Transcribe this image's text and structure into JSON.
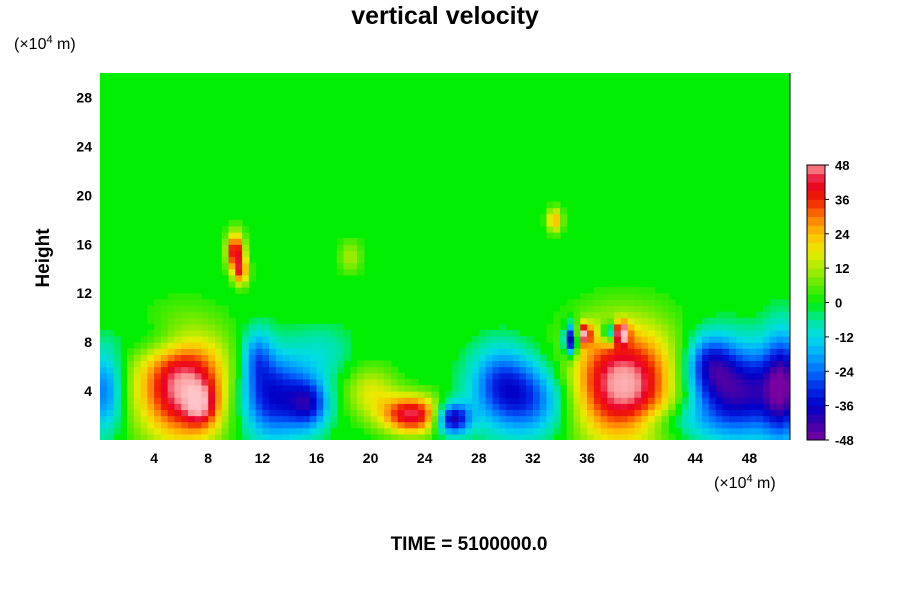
{
  "chart_data": {
    "type": "heatmap",
    "title": "vertical velocity",
    "ylabel": "Height",
    "y_unit": {
      "prefix": "(×10",
      "exponent": "4",
      "suffix": " m)"
    },
    "x_unit": {
      "prefix": "(×10",
      "exponent": "4",
      "suffix": " m)"
    },
    "xlim": [
      0,
      51
    ],
    "ylim": [
      0,
      30
    ],
    "x_ticks": [
      4,
      8,
      12,
      16,
      20,
      24,
      28,
      32,
      36,
      40,
      44,
      48
    ],
    "y_ticks": [
      4,
      8,
      12,
      16,
      20,
      24,
      28
    ],
    "colorbar": {
      "min": -48,
      "max": 48,
      "ticks": [
        48,
        36,
        24,
        12,
        0,
        -12,
        -24,
        -36,
        -48
      ]
    },
    "background_value": 0,
    "features": [
      {
        "x": 6.2,
        "y": 4.4,
        "value": 50,
        "sx": 2.4,
        "sy": 3.1
      },
      {
        "x": 7.5,
        "y": 2.8,
        "value": 18,
        "sx": 0.8,
        "sy": 1.2
      },
      {
        "x": 38.7,
        "y": 4.6,
        "value": 52,
        "sx": 2.9,
        "sy": 3.3
      },
      {
        "x": 23.1,
        "y": 2.1,
        "value": 44,
        "sx": 1.6,
        "sy": 1.1
      },
      {
        "x": 20.0,
        "y": 4.0,
        "value": 16,
        "sx": 1.4,
        "sy": 1.5
      },
      {
        "x": 26.0,
        "y": 1.8,
        "value": -44,
        "sx": 0.9,
        "sy": 0.9
      },
      {
        "x": 12.8,
        "y": 3.6,
        "value": -36,
        "sx": 1.9,
        "sy": 2.4
      },
      {
        "x": 15.5,
        "y": 3.0,
        "value": -26,
        "sx": 1.0,
        "sy": 1.4
      },
      {
        "x": 11.6,
        "y": 7.0,
        "value": -18,
        "sx": 0.8,
        "sy": 1.6
      },
      {
        "x": 31.5,
        "y": 3.4,
        "value": -30,
        "sx": 2.4,
        "sy": 2.2
      },
      {
        "x": 29.5,
        "y": 5.2,
        "value": -16,
        "sx": 1.5,
        "sy": 2.0
      },
      {
        "x": 47.0,
        "y": 4.0,
        "value": -42,
        "sx": 2.6,
        "sy": 2.6
      },
      {
        "x": 50.5,
        "y": 4.5,
        "value": -34,
        "sx": 1.0,
        "sy": 3.0
      },
      {
        "x": 45.0,
        "y": 6.5,
        "value": -22,
        "sx": 1.2,
        "sy": 1.6
      },
      {
        "x": 0.4,
        "y": 4.0,
        "value": -24,
        "sx": 0.9,
        "sy": 2.4
      },
      {
        "x": 34.8,
        "y": 8.2,
        "value": -48,
        "sx": 0.35,
        "sy": 0.9
      },
      {
        "x": 35.8,
        "y": 8.7,
        "value": 40,
        "sx": 0.35,
        "sy": 0.6
      },
      {
        "x": 37.6,
        "y": 8.8,
        "value": -36,
        "sx": 0.3,
        "sy": 0.6
      },
      {
        "x": 38.6,
        "y": 8.8,
        "value": 40,
        "sx": 0.35,
        "sy": 0.6
      },
      {
        "x": 10.0,
        "y": 15.5,
        "value": 42,
        "sx": 0.45,
        "sy": 1.1
      },
      {
        "x": 10.4,
        "y": 13.8,
        "value": 30,
        "sx": 0.4,
        "sy": 0.8
      },
      {
        "x": 33.6,
        "y": 18.0,
        "value": 26,
        "sx": 0.4,
        "sy": 0.7
      },
      {
        "x": 18.5,
        "y": 15.0,
        "value": 12,
        "sx": 0.6,
        "sy": 1.0
      },
      {
        "x": 4.5,
        "y": 8.2,
        "value": -10,
        "sx": 2.0,
        "sy": 1.2
      },
      {
        "x": 16.5,
        "y": 7.2,
        "value": -8,
        "sx": 1.6,
        "sy": 1.6
      },
      {
        "x": 42.0,
        "y": 1.5,
        "value": -10,
        "sx": 2.0,
        "sy": 1.0
      }
    ]
  },
  "footer": {
    "time_label": "TIME = 5100000.0"
  }
}
